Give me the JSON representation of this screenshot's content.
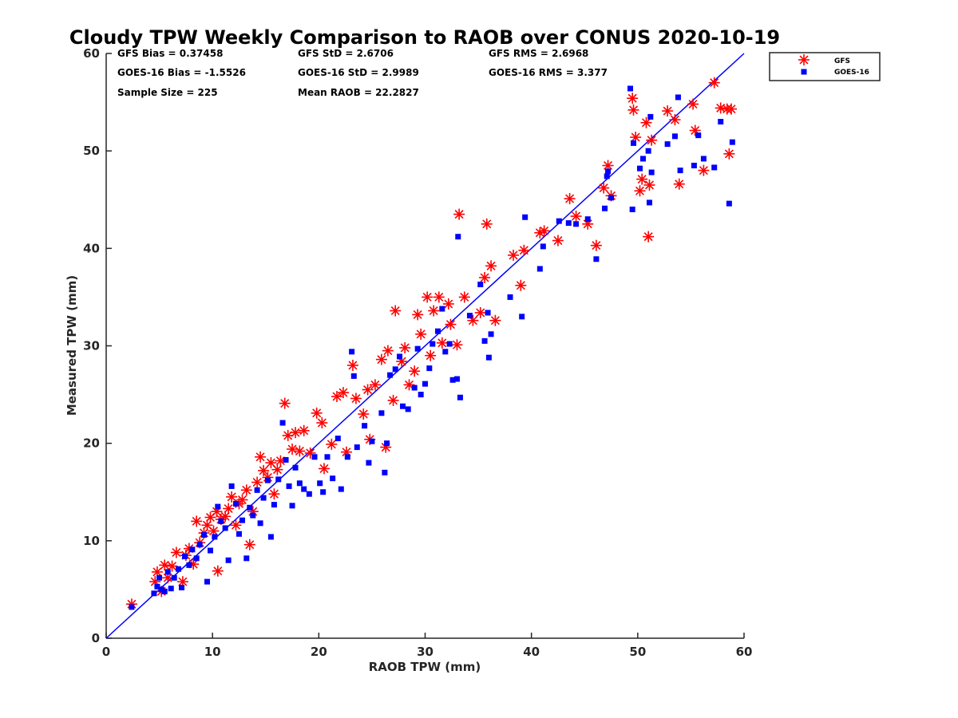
{
  "chart_data": {
    "type": "scatter",
    "title": "Cloudy TPW Weekly Comparison to RAOB over CONUS 2020-10-19",
    "xlabel": "RAOB TPW (mm)",
    "ylabel": "Measured TPW (mm)",
    "xlim": [
      0,
      60
    ],
    "ylim": [
      0,
      60
    ],
    "xticks": [
      "0",
      "10",
      "20",
      "30",
      "40",
      "50",
      "60"
    ],
    "yticks": [
      "0",
      "10",
      "20",
      "30",
      "40",
      "50",
      "60"
    ],
    "grid": false,
    "legend_position": "outside-top-right",
    "reference_line": {
      "x": [
        0,
        60
      ],
      "y": [
        0,
        60
      ],
      "color": "#0000ff"
    },
    "stats": {
      "gfs_bias": "GFS Bias = 0.37458",
      "gfs_std": "GFS StD = 2.6706",
      "gfs_rms": "GFS RMS = 2.6968",
      "goes_bias": "GOES-16 Bias = -1.5526",
      "goes_std": "GOES-16 StD = 2.9989",
      "goes_rms": "GOES-16 RMS = 3.377",
      "sample_size": "Sample Size = 225",
      "mean_raob": "Mean RAOB = 22.2827"
    },
    "series": [
      {
        "name": "GFS",
        "marker": "asterisk",
        "color": "#ff0000",
        "points": [
          [
            2.4,
            3.5
          ],
          [
            4.6,
            5.8
          ],
          [
            4.8,
            6.8
          ],
          [
            5.2,
            4.8
          ],
          [
            5.5,
            7.5
          ],
          [
            5.8,
            6.2
          ],
          [
            6.2,
            7.4
          ],
          [
            6.6,
            8.8
          ],
          [
            7.2,
            5.8
          ],
          [
            7.5,
            8.5
          ],
          [
            7.8,
            9.2
          ],
          [
            8.2,
            7.6
          ],
          [
            8.5,
            12.0
          ],
          [
            8.8,
            9.8
          ],
          [
            9.2,
            10.8
          ],
          [
            9.5,
            11.6
          ],
          [
            9.8,
            12.4
          ],
          [
            10.1,
            11.0
          ],
          [
            10.4,
            13.0
          ],
          [
            10.5,
            6.9
          ],
          [
            10.8,
            12.2
          ],
          [
            11.2,
            12.5
          ],
          [
            11.5,
            13.3
          ],
          [
            11.8,
            14.5
          ],
          [
            12.2,
            11.6
          ],
          [
            12.5,
            13.8
          ],
          [
            12.8,
            14.2
          ],
          [
            13.2,
            15.2
          ],
          [
            13.5,
            9.6
          ],
          [
            13.8,
            13.0
          ],
          [
            14.2,
            16.0
          ],
          [
            14.5,
            18.6
          ],
          [
            14.8,
            17.2
          ],
          [
            15.2,
            16.5
          ],
          [
            15.5,
            18.0
          ],
          [
            15.8,
            14.8
          ],
          [
            16.1,
            17.3
          ],
          [
            16.4,
            18.2
          ],
          [
            16.8,
            24.1
          ],
          [
            17.1,
            20.8
          ],
          [
            17.5,
            19.4
          ],
          [
            17.8,
            21.1
          ],
          [
            18.2,
            19.2
          ],
          [
            18.6,
            21.3
          ],
          [
            19.2,
            19.0
          ],
          [
            19.8,
            23.1
          ],
          [
            20.3,
            22.1
          ],
          [
            20.5,
            17.4
          ],
          [
            21.2,
            19.9
          ],
          [
            21.7,
            24.8
          ],
          [
            22.3,
            25.2
          ],
          [
            22.6,
            19.1
          ],
          [
            23.2,
            28.0
          ],
          [
            23.5,
            24.6
          ],
          [
            24.2,
            23.0
          ],
          [
            24.6,
            25.5
          ],
          [
            24.8,
            20.4
          ],
          [
            25.3,
            26.0
          ],
          [
            25.9,
            28.6
          ],
          [
            26.3,
            19.6
          ],
          [
            26.5,
            29.5
          ],
          [
            27.0,
            24.4
          ],
          [
            27.2,
            33.6
          ],
          [
            27.8,
            28.4
          ],
          [
            28.1,
            29.8
          ],
          [
            28.5,
            26.0
          ],
          [
            29.0,
            27.4
          ],
          [
            29.3,
            33.2
          ],
          [
            29.6,
            31.2
          ],
          [
            30.2,
            35.0
          ],
          [
            30.5,
            29.0
          ],
          [
            30.8,
            33.6
          ],
          [
            31.3,
            35.0
          ],
          [
            31.6,
            30.3
          ],
          [
            32.2,
            34.3
          ],
          [
            32.4,
            32.2
          ],
          [
            33.0,
            30.1
          ],
          [
            33.2,
            43.5
          ],
          [
            33.7,
            35.0
          ],
          [
            34.5,
            32.6
          ],
          [
            35.2,
            33.4
          ],
          [
            35.6,
            37.0
          ],
          [
            35.8,
            42.5
          ],
          [
            36.2,
            38.2
          ],
          [
            36.6,
            32.6
          ],
          [
            38.3,
            39.3
          ],
          [
            39.0,
            36.2
          ],
          [
            39.3,
            39.8
          ],
          [
            40.8,
            41.6
          ],
          [
            41.2,
            41.8
          ],
          [
            42.5,
            40.8
          ],
          [
            43.6,
            45.1
          ],
          [
            44.2,
            43.3
          ],
          [
            45.3,
            42.5
          ],
          [
            46.1,
            40.3
          ],
          [
            46.8,
            46.2
          ],
          [
            47.2,
            48.5
          ],
          [
            47.5,
            45.4
          ],
          [
            49.5,
            55.4
          ],
          [
            49.6,
            54.2
          ],
          [
            49.8,
            51.4
          ],
          [
            50.2,
            45.9
          ],
          [
            50.4,
            47.1
          ],
          [
            50.8,
            52.9
          ],
          [
            51.0,
            41.2
          ],
          [
            51.1,
            46.5
          ],
          [
            51.3,
            51.1
          ],
          [
            52.8,
            54.1
          ],
          [
            53.5,
            53.2
          ],
          [
            53.9,
            46.6
          ],
          [
            55.2,
            54.8
          ],
          [
            55.4,
            52.1
          ],
          [
            56.2,
            48.0
          ],
          [
            57.2,
            57.0
          ],
          [
            57.8,
            54.4
          ],
          [
            58.4,
            54.3
          ],
          [
            58.6,
            49.7
          ],
          [
            58.8,
            54.3
          ]
        ]
      },
      {
        "name": "GOES-16",
        "marker": "square",
        "color": "#0000ff",
        "points": [
          [
            2.4,
            3.2
          ],
          [
            4.5,
            4.6
          ],
          [
            4.8,
            5.3
          ],
          [
            5.0,
            6.2
          ],
          [
            5.2,
            5.0
          ],
          [
            5.5,
            4.8
          ],
          [
            5.8,
            6.8
          ],
          [
            6.1,
            5.1
          ],
          [
            6.4,
            6.2
          ],
          [
            6.8,
            7.1
          ],
          [
            7.1,
            5.2
          ],
          [
            7.4,
            8.4
          ],
          [
            7.8,
            7.5
          ],
          [
            8.1,
            9.1
          ],
          [
            8.5,
            8.2
          ],
          [
            8.8,
            9.6
          ],
          [
            9.2,
            10.6
          ],
          [
            9.5,
            5.8
          ],
          [
            9.8,
            9.0
          ],
          [
            10.2,
            10.4
          ],
          [
            10.5,
            13.5
          ],
          [
            10.8,
            12.0
          ],
          [
            11.2,
            11.3
          ],
          [
            11.5,
            8.0
          ],
          [
            11.8,
            15.6
          ],
          [
            12.2,
            13.8
          ],
          [
            12.5,
            10.7
          ],
          [
            12.8,
            12.1
          ],
          [
            13.2,
            8.2
          ],
          [
            13.5,
            13.4
          ],
          [
            13.8,
            12.6
          ],
          [
            14.2,
            15.2
          ],
          [
            14.5,
            11.8
          ],
          [
            14.8,
            14.4
          ],
          [
            15.2,
            16.2
          ],
          [
            15.5,
            10.4
          ],
          [
            15.8,
            13.7
          ],
          [
            16.2,
            16.3
          ],
          [
            16.6,
            22.1
          ],
          [
            16.9,
            18.3
          ],
          [
            17.2,
            15.6
          ],
          [
            17.5,
            13.6
          ],
          [
            17.8,
            17.5
          ],
          [
            18.2,
            15.9
          ],
          [
            18.6,
            15.3
          ],
          [
            19.1,
            14.8
          ],
          [
            19.6,
            18.6
          ],
          [
            20.1,
            15.9
          ],
          [
            20.4,
            15.0
          ],
          [
            20.8,
            18.6
          ],
          [
            21.3,
            16.4
          ],
          [
            21.8,
            20.5
          ],
          [
            22.1,
            15.3
          ],
          [
            22.7,
            18.6
          ],
          [
            23.1,
            29.4
          ],
          [
            23.3,
            26.9
          ],
          [
            23.6,
            19.6
          ],
          [
            24.3,
            21.8
          ],
          [
            24.7,
            18.0
          ],
          [
            25.0,
            20.2
          ],
          [
            25.9,
            23.1
          ],
          [
            26.2,
            17.0
          ],
          [
            26.4,
            20.0
          ],
          [
            26.7,
            27.0
          ],
          [
            27.2,
            27.6
          ],
          [
            27.6,
            28.9
          ],
          [
            27.9,
            23.8
          ],
          [
            28.4,
            23.5
          ],
          [
            29.0,
            25.7
          ],
          [
            29.3,
            29.7
          ],
          [
            29.6,
            25.0
          ],
          [
            30.0,
            26.1
          ],
          [
            30.4,
            27.7
          ],
          [
            30.7,
            30.2
          ],
          [
            31.2,
            31.5
          ],
          [
            31.6,
            33.8
          ],
          [
            31.9,
            29.4
          ],
          [
            32.3,
            30.2
          ],
          [
            32.6,
            26.5
          ],
          [
            33.0,
            26.6
          ],
          [
            33.3,
            24.7
          ],
          [
            33.1,
            41.2
          ],
          [
            34.2,
            33.1
          ],
          [
            35.2,
            36.3
          ],
          [
            35.6,
            30.5
          ],
          [
            35.9,
            33.4
          ],
          [
            36.0,
            28.8
          ],
          [
            36.2,
            31.2
          ],
          [
            38.0,
            35.0
          ],
          [
            39.1,
            33.0
          ],
          [
            39.4,
            43.2
          ],
          [
            40.8,
            37.9
          ],
          [
            41.1,
            40.2
          ],
          [
            42.6,
            42.8
          ],
          [
            43.5,
            42.6
          ],
          [
            44.2,
            42.5
          ],
          [
            45.3,
            43.0
          ],
          [
            46.1,
            38.9
          ],
          [
            46.9,
            44.1
          ],
          [
            47.1,
            47.4
          ],
          [
            47.2,
            47.9
          ],
          [
            47.5,
            45.2
          ],
          [
            49.3,
            56.4
          ],
          [
            49.5,
            44.0
          ],
          [
            49.6,
            50.8
          ],
          [
            50.2,
            48.2
          ],
          [
            50.5,
            49.2
          ],
          [
            51.0,
            50.0
          ],
          [
            51.1,
            44.7
          ],
          [
            51.2,
            53.5
          ],
          [
            51.3,
            47.8
          ],
          [
            52.8,
            50.7
          ],
          [
            53.5,
            51.5
          ],
          [
            53.8,
            55.5
          ],
          [
            54.0,
            48.0
          ],
          [
            55.3,
            48.5
          ],
          [
            55.7,
            51.6
          ],
          [
            56.2,
            49.2
          ],
          [
            57.2,
            48.3
          ],
          [
            57.8,
            53.0
          ],
          [
            58.6,
            44.6
          ],
          [
            58.9,
            50.9
          ]
        ]
      }
    ]
  },
  "colors": {
    "gfs": "#ff0000",
    "goes": "#0000ff",
    "axis": "#262626",
    "background": "#ffffff"
  }
}
